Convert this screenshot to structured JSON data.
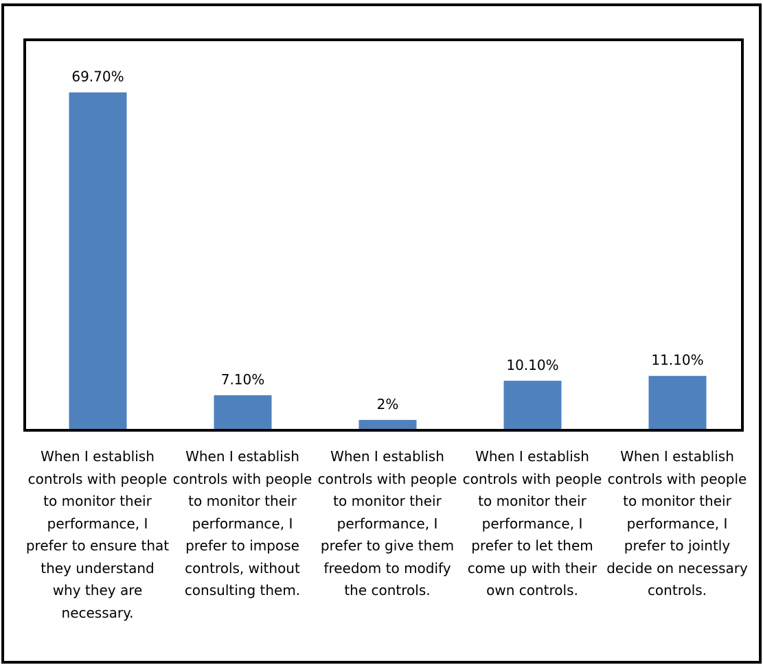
{
  "chart_data": {
    "type": "bar",
    "categories": [
      "When I establish controls with people to monitor their performance, I prefer to ensure that they understand why they are necessary.",
      "When I establish controls with people to monitor their performance, I prefer to impose controls, without consulting them.",
      "When I establish controls with people to monitor their performance, I prefer to give them freedom to modify the controls.",
      "When I establish controls with people to monitor their performance, I prefer to let them come up with their own controls.",
      "When I establish controls with people to monitor their performance, I prefer to jointly decide on necessary controls."
    ],
    "values": [
      69.7,
      7.1,
      2,
      10.1,
      11.1
    ],
    "data_labels": [
      "69.70%",
      "7.10%",
      "2%",
      "10.10%",
      "11.10%"
    ],
    "ylim": [
      0,
      80
    ],
    "grid": false,
    "legend": "none",
    "bar_color": "#4f81bd"
  }
}
